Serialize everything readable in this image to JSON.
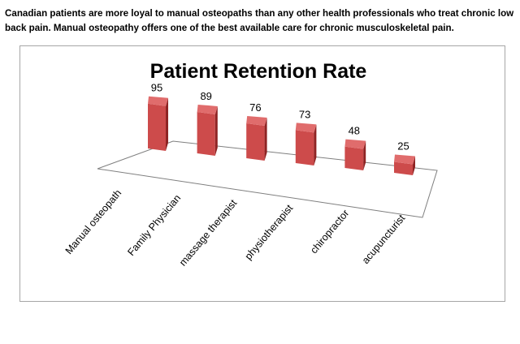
{
  "intro_text": "Canadian patients are more loyal to manual osteopaths than any other health professionals who treat chronic low back pain. Manual osteopathy offers one of the best available care for chronic musculoskeletal pain.",
  "colors": {
    "bar_front": "#cd4b4b",
    "bar_side": "#8f2424",
    "bar_top": "#e06c6c",
    "floor_line": "#7f7f7f",
    "frame": "#a6a6a6"
  },
  "chart_data": {
    "type": "bar",
    "title": "Patient Retention Rate",
    "xlabel": "",
    "ylabel": "",
    "categories": [
      "Manual osteopath",
      "Family Physician",
      "massage therapist",
      "physiotherapist",
      "chiropractor",
      "acupuncturist"
    ],
    "values": [
      95,
      89,
      76,
      73,
      48,
      25
    ],
    "data_labels": [
      "95",
      "89",
      "76",
      "73",
      "48",
      "25"
    ],
    "ylim": [
      0,
      100
    ],
    "grid": false,
    "legend": "none",
    "style": "3d-perspective"
  }
}
